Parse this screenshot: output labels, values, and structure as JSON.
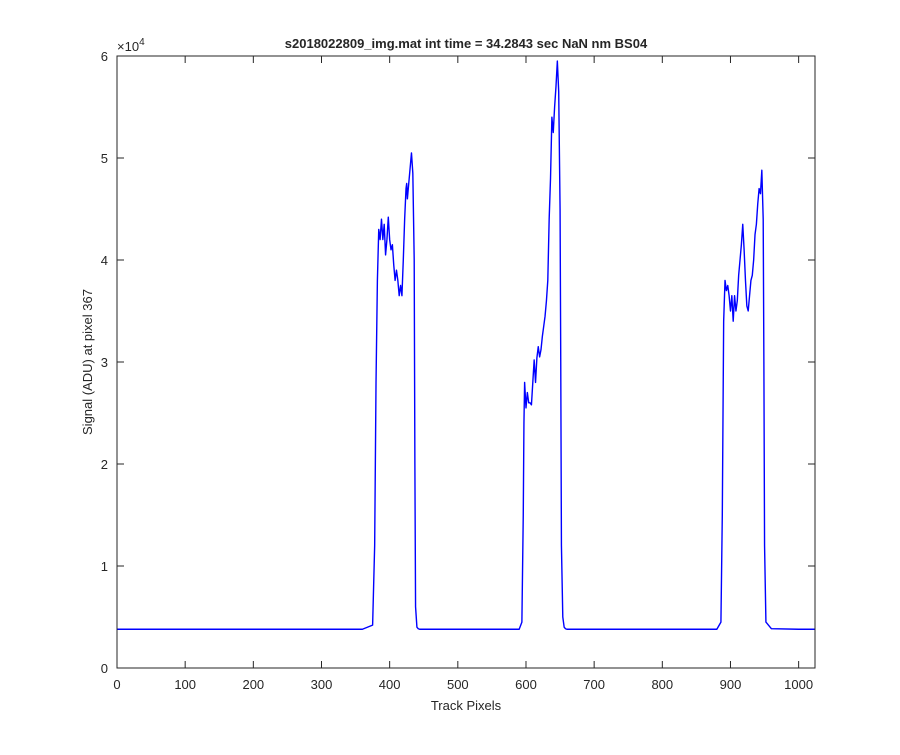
{
  "chart_data": {
    "type": "line",
    "title": "s2018022809_img.mat int time = 34.2843 sec  NaN nm BS04",
    "xlabel": "Track Pixels",
    "ylabel": "Signal (ADU) at pixel 367",
    "y_exponent_label": "×10",
    "y_exponent_power": "4",
    "xlim": [
      0,
      1024
    ],
    "ylim": [
      0,
      60000
    ],
    "x_ticks": [
      0,
      100,
      200,
      300,
      400,
      500,
      600,
      700,
      800,
      900,
      1000
    ],
    "x_tick_labels": [
      "0",
      "100",
      "200",
      "300",
      "400",
      "500",
      "600",
      "700",
      "800",
      "900",
      "1000"
    ],
    "y_ticks": [
      0,
      10000,
      20000,
      30000,
      40000,
      50000,
      60000
    ],
    "y_tick_labels": [
      "0",
      "1",
      "2",
      "3",
      "4",
      "5",
      "6"
    ],
    "grid": false,
    "line_color": "#0000ff",
    "series": [
      {
        "x": [
          0,
          100,
          200,
          300,
          360,
          375,
          378,
          380,
          382,
          384,
          386,
          388,
          390,
          392,
          394,
          396,
          398,
          400,
          402,
          404,
          406,
          408,
          410,
          412,
          414,
          416,
          418,
          420,
          422,
          424,
          425,
          426,
          428,
          430,
          432,
          434,
          436,
          437,
          438,
          440,
          442,
          444,
          450,
          500,
          590,
          594,
          596,
          597,
          598,
          600,
          602,
          604,
          606,
          608,
          610,
          612,
          614,
          616,
          618,
          620,
          622,
          624,
          626,
          628,
          630,
          632,
          634,
          636,
          638,
          640,
          642,
          644,
          646,
          648,
          650,
          651,
          652,
          654,
          656,
          658,
          660,
          662,
          670,
          700,
          800,
          880,
          886,
          888,
          890,
          892,
          894,
          896,
          898,
          900,
          902,
          904,
          906,
          908,
          910,
          912,
          914,
          916,
          918,
          920,
          922,
          924,
          926,
          928,
          930,
          932,
          934,
          936,
          938,
          940,
          942,
          944,
          946,
          948,
          949,
          950,
          952,
          960,
          1000,
          1024
        ],
        "y": [
          3800,
          3800,
          3800,
          3800,
          3800,
          4200,
          12000,
          28000,
          38000,
          43000,
          42000,
          44000,
          42000,
          43500,
          40500,
          42000,
          44200,
          42000,
          41000,
          41500,
          39500,
          38000,
          39000,
          38000,
          36500,
          37500,
          36500,
          40000,
          44000,
          47000,
          47500,
          46000,
          47500,
          49000,
          50500,
          48500,
          40000,
          20000,
          6000,
          4000,
          3850,
          3800,
          3800,
          3800,
          3800,
          4500,
          15000,
          24000,
          28000,
          25500,
          27000,
          26000,
          26000,
          25800,
          28000,
          30200,
          28000,
          30400,
          31500,
          30500,
          31200,
          32500,
          33500,
          34500,
          36000,
          38000,
          44000,
          48000,
          54000,
          52500,
          55000,
          57000,
          59500,
          56500,
          45000,
          30000,
          12000,
          5000,
          4000,
          3850,
          3800,
          3800,
          3800,
          3800,
          3800,
          3800,
          4500,
          15000,
          34000,
          38000,
          37000,
          37500,
          36500,
          35000,
          36500,
          34000,
          36500,
          35000,
          36000,
          38500,
          40000,
          41500,
          43500,
          41000,
          38000,
          35500,
          35000,
          36500,
          38000,
          38500,
          40000,
          42500,
          43500,
          45500,
          47000,
          46500,
          48800,
          44000,
          30000,
          12000,
          4500,
          3850,
          3800,
          3800
        ]
      }
    ]
  }
}
